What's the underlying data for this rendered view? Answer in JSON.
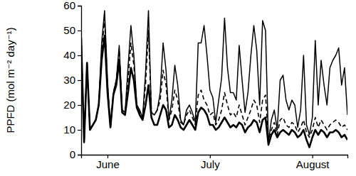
{
  "chart_data": {
    "type": "line",
    "y_label": "PPFD (mol m⁻² day⁻¹)",
    "categories": [
      null,
      null,
      null,
      null,
      null,
      null,
      null,
      null,
      null,
      "June",
      null,
      null,
      null,
      null,
      null,
      null,
      null,
      null,
      null,
      null,
      null,
      null,
      null,
      null,
      null,
      null,
      null,
      null,
      null,
      null,
      null,
      null,
      null,
      null,
      null,
      null,
      null,
      null,
      null,
      null,
      null,
      null,
      null,
      null,
      "July",
      null,
      null,
      null,
      null,
      null,
      null,
      null,
      null,
      null,
      null,
      null,
      null,
      null,
      null,
      null,
      null,
      null,
      null,
      null,
      null,
      null,
      null,
      null,
      null,
      null,
      null,
      null,
      null,
      null,
      null,
      null,
      null,
      null,
      null,
      "August",
      null,
      null,
      null,
      null,
      null,
      null,
      null,
      null,
      null,
      null,
      null,
      null
    ],
    "ylim": [
      0,
      60
    ],
    "yticks": [
      0,
      10,
      20,
      30,
      40,
      50,
      60
    ],
    "grid": false,
    "series": [
      {
        "color": "#000000",
        "line_style": "solid",
        "values": [
          47,
          5,
          37,
          10,
          12,
          14,
          20,
          45,
          58,
          30,
          11,
          25,
          30,
          44,
          18,
          17,
          35,
          52,
          40,
          20,
          18,
          15,
          33,
          58,
          17,
          16,
          18,
          25,
          45,
          34,
          14,
          22,
          36,
          28,
          14,
          12,
          18,
          20,
          17,
          13,
          45,
          45,
          52,
          40,
          26,
          23,
          13,
          22,
          31,
          55,
          35,
          25,
          25,
          22,
          44,
          30,
          17,
          25,
          40,
          52,
          42,
          20,
          54,
          50,
          5,
          14,
          18,
          10,
          30,
          32,
          22,
          18,
          22,
          20,
          11,
          18,
          40,
          12,
          8,
          15,
          46,
          20,
          38,
          28,
          20,
          35,
          38,
          40,
          43,
          28,
          35,
          16
        ]
      },
      {
        "color": "#000000",
        "line_style": "dashed",
        "values": [
          47,
          5,
          37,
          10,
          12,
          14,
          20,
          40,
          55,
          28,
          11,
          25,
          30,
          42,
          18,
          17,
          30,
          45,
          36,
          20,
          17,
          15,
          28,
          50,
          17,
          16,
          18,
          22,
          34,
          28,
          14,
          18,
          26,
          22,
          13,
          12,
          16,
          18,
          15,
          12,
          24,
          26,
          22,
          20,
          16,
          17,
          12,
          14,
          18,
          25,
          20,
          16,
          17,
          15,
          20,
          16,
          12,
          15,
          18,
          22,
          20,
          13,
          22,
          24,
          6,
          10,
          13,
          8,
          14,
          15,
          12,
          11,
          13,
          12,
          9,
          11,
          14,
          9,
          7,
          10,
          15,
          11,
          14,
          12,
          10,
          12,
          13,
          14,
          13,
          11,
          12,
          10
        ]
      },
      {
        "color": "#000000",
        "line_style": "thick",
        "values": [
          47,
          5,
          37,
          10,
          12,
          14,
          20,
          38,
          48,
          25,
          11,
          24,
          28,
          38,
          17,
          16,
          25,
          35,
          30,
          19,
          16,
          14,
          20,
          28,
          15,
          12,
          12,
          16,
          20,
          18,
          11,
          12,
          16,
          14,
          11,
          10,
          12,
          14,
          12,
          10,
          17,
          19,
          18,
          16,
          12,
          12,
          10,
          11,
          13,
          15,
          13,
          11,
          12,
          11,
          13,
          12,
          9,
          11,
          12,
          14,
          13,
          9,
          14,
          15,
          4,
          8,
          10,
          7,
          9,
          10,
          9,
          8,
          10,
          9,
          7,
          8,
          10,
          6,
          3,
          7,
          10,
          8,
          10,
          9,
          7,
          9,
          9,
          10,
          9,
          7,
          8,
          6
        ]
      }
    ]
  }
}
